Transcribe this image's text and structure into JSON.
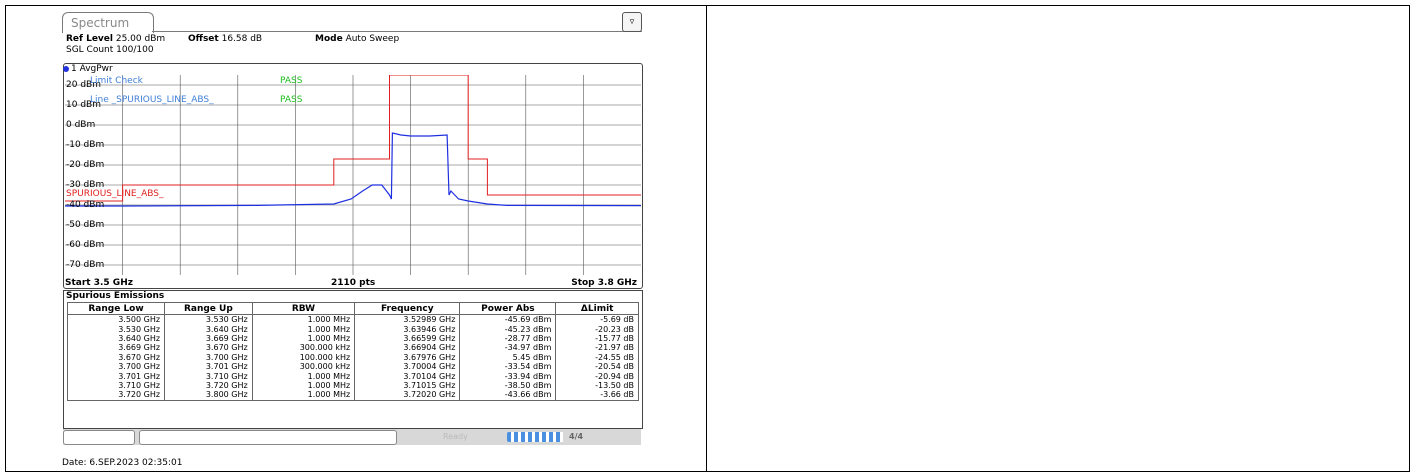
{
  "window": {
    "tab_label": "Spectrum",
    "ref_level_label": "Ref Level",
    "ref_level_value": "25.00 dBm",
    "offset_label": "Offset",
    "offset_value": "16.58 dB",
    "mode_label": "Mode",
    "mode_value": "Auto Sweep",
    "sgl_count": "SGL Count 100/100",
    "trace_label": "1 AvgPwr"
  },
  "chart_data": {
    "type": "line",
    "x_unit": "GHz",
    "y_unit": "dBm",
    "xlim": [
      3.5,
      3.8
    ],
    "ylim": [
      -75,
      25
    ],
    "y_ticks": [
      "20 dBm",
      "10 dBm",
      "0 dBm",
      "-10 dBm",
      "-20 dBm",
      "-30 dBm",
      "-40 dBm",
      "-50 dBm",
      "-60 dBm",
      "-70 dBm"
    ],
    "limit_line_name": "SPURIOUS_LINE_ABS_",
    "limit_check": {
      "label": "Limit Check",
      "result": "PASS",
      "line_label": "Line _SPURIOUS_LINE_ABS_",
      "line_result": "PASS"
    },
    "series": [
      {
        "name": "trace",
        "color": "#1e2fe0",
        "x": [
          3.5,
          3.53,
          3.6,
          3.64,
          3.649,
          3.655,
          3.66,
          3.665,
          3.669,
          3.67,
          3.6705,
          3.675,
          3.68,
          3.69,
          3.699,
          3.7,
          3.701,
          3.705,
          3.71,
          3.72,
          3.73,
          3.8
        ],
        "y": [
          -40.5,
          -40.5,
          -40.2,
          -39.5,
          -37,
          -33,
          -30,
          -30,
          -35,
          -37,
          -4,
          -5,
          -5.5,
          -5.5,
          -5,
          -35,
          -33,
          -37,
          -38,
          -39.5,
          -40.2,
          -40.3
        ]
      },
      {
        "name": "limit",
        "color": "#e02020",
        "x": [
          3.5,
          3.53,
          3.53,
          3.64,
          3.64,
          3.669,
          3.669,
          3.7,
          3.7,
          3.71,
          3.71,
          3.72,
          3.72,
          3.8
        ],
        "y": [
          -38,
          -38,
          -30,
          -30,
          -17,
          -17,
          30,
          30,
          30,
          30,
          -17,
          -17,
          -35,
          -35
        ]
      }
    ],
    "start_label": "Start 3.5 GHz",
    "points_label": "2110 pts",
    "stop_label": "Stop 3.8 GHz"
  },
  "spurious": {
    "title": "Spurious Emissions",
    "headers": [
      "Range Low",
      "Range Up",
      "RBW",
      "Frequency",
      "Power Abs",
      "ΔLimit"
    ],
    "rows": [
      [
        "3.500 GHz",
        "3.530 GHz",
        "1.000 MHz",
        "3.52989 GHz",
        "-45.69 dBm",
        "-5.69 dB"
      ],
      [
        "3.530 GHz",
        "3.640 GHz",
        "1.000 MHz",
        "3.63946 GHz",
        "-45.23 dBm",
        "-20.23 dB"
      ],
      [
        "3.640 GHz",
        "3.669 GHz",
        "1.000 MHz",
        "3.66599 GHz",
        "-28.77 dBm",
        "-15.77 dB"
      ],
      [
        "3.669 GHz",
        "3.670 GHz",
        "300.000 kHz",
        "3.66904 GHz",
        "-34.97 dBm",
        "-21.97 dB"
      ],
      [
        "3.670 GHz",
        "3.700 GHz",
        "100.000 kHz",
        "3.67976 GHz",
        "5.45 dBm",
        "-24.55 dB"
      ],
      [
        "3.700 GHz",
        "3.701 GHz",
        "300.000 kHz",
        "3.70004 GHz",
        "-33.54 dBm",
        "-20.54 dB"
      ],
      [
        "3.701 GHz",
        "3.710 GHz",
        "1.000 MHz",
        "3.70104 GHz",
        "-33.94 dBm",
        "-20.94 dB"
      ],
      [
        "3.710 GHz",
        "3.720 GHz",
        "1.000 MHz",
        "3.71015 GHz",
        "-38.50 dBm",
        "-13.50 dB"
      ],
      [
        "3.720 GHz",
        "3.800 GHz",
        "1.000 MHz",
        "3.72020 GHz",
        "-43.66 dBm",
        "-3.66 dB"
      ]
    ]
  },
  "status": {
    "ready_text": "Ready",
    "progress": 1.0,
    "icon_text": "4/4"
  },
  "date_stamp": "Date: 6.SEP.2023  02:35:01"
}
